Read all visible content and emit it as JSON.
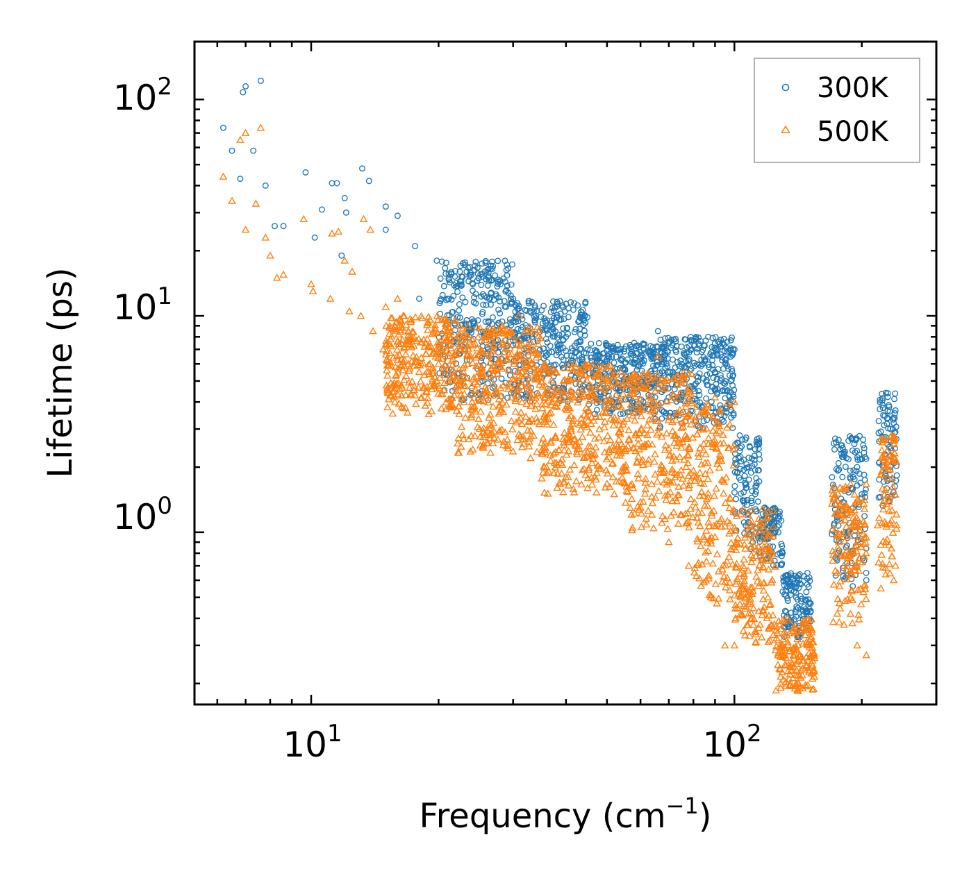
{
  "chart_data": {
    "type": "scatter",
    "xscale": "log",
    "yscale": "log",
    "xlabel_main": "Frequency (cm",
    "xlabel_sup": "−1",
    "xlabel_end": ")",
    "ylabel": "Lifetime (ps)",
    "xlim": [
      5.3,
      300
    ],
    "ylim": [
      0.16,
      185
    ],
    "xticks": [
      {
        "value": 10,
        "base": "10",
        "exp": "1"
      },
      {
        "value": 100,
        "base": "10",
        "exp": "2"
      }
    ],
    "yticks": [
      {
        "value": 1,
        "base": "10",
        "exp": "0"
      },
      {
        "value": 10,
        "base": "10",
        "exp": "1"
      },
      {
        "value": 100,
        "base": "10",
        "exp": "2"
      }
    ],
    "legend_position": "top-right",
    "series": [
      {
        "name": "300K",
        "marker": "circle-open",
        "color": "#1f77b4",
        "anchors": [
          [
            6.2,
            74
          ],
          [
            6.9,
            108
          ],
          [
            7.0,
            115
          ],
          [
            7.6,
            122
          ],
          [
            6.5,
            58
          ],
          [
            7.3,
            58
          ],
          [
            6.8,
            43
          ],
          [
            7.8,
            40
          ],
          [
            9.7,
            46
          ],
          [
            11.2,
            41
          ],
          [
            11.5,
            41
          ],
          [
            13.2,
            48
          ],
          [
            13.7,
            42
          ],
          [
            12.0,
            35
          ],
          [
            16.0,
            29
          ],
          [
            10.6,
            31
          ],
          [
            12.1,
            30
          ],
          [
            8.2,
            26
          ],
          [
            8.6,
            26
          ],
          [
            10.2,
            23
          ],
          [
            11.8,
            19
          ],
          [
            15.0,
            32
          ],
          [
            15.0,
            25
          ],
          [
            17.6,
            21
          ],
          [
            19.8,
            18
          ],
          [
            23.3,
            16
          ],
          [
            26.8,
            16.5
          ],
          [
            28.0,
            14
          ],
          [
            24.1,
            14
          ],
          [
            18.0,
            12
          ],
          [
            21.0,
            12
          ],
          [
            30.0,
            12
          ],
          [
            34.0,
            10
          ],
          [
            37.0,
            9.5
          ],
          [
            40.0,
            8
          ],
          [
            45.0,
            7
          ],
          [
            48.0,
            6.5
          ],
          [
            52.0,
            5.5
          ],
          [
            58.0,
            7.5
          ],
          [
            60.0,
            6
          ],
          [
            66.0,
            8.5
          ],
          [
            70.0,
            7.5
          ],
          [
            75.0,
            6
          ],
          [
            85.0,
            6.2
          ],
          [
            90.0,
            5.5
          ],
          [
            100.0,
            7
          ],
          [
            98.0,
            5
          ],
          [
            95.0,
            4.5
          ],
          [
            103.0,
            2.8
          ],
          [
            108.0,
            2
          ],
          [
            112.0,
            1.5
          ],
          [
            118.0,
            1.3
          ],
          [
            122.0,
            1.1
          ],
          [
            128.0,
            0.8
          ],
          [
            132.0,
            0.6
          ],
          [
            140.0,
            0.5
          ],
          [
            148.0,
            0.42
          ],
          [
            180.0,
            1.8
          ],
          [
            190.0,
            2.7
          ],
          [
            195.0,
            2.0
          ],
          [
            200.0,
            1.5
          ],
          [
            228.0,
            4.4
          ],
          [
            232.0,
            3.8
          ],
          [
            238.0,
            3.2
          ],
          [
            185.0,
            1.0
          ],
          [
            205.0,
            0.6
          ]
        ],
        "bands": [
          [
            20,
            30,
            4.0,
            18
          ],
          [
            30,
            45,
            4.0,
            12
          ],
          [
            45,
            65,
            3.5,
            7.5
          ],
          [
            65,
            100,
            3.0,
            8
          ],
          [
            100,
            115,
            0.8,
            2.8
          ],
          [
            115,
            130,
            0.7,
            1.3
          ],
          [
            130,
            152,
            0.32,
            0.65
          ],
          [
            170,
            205,
            0.55,
            2.8
          ],
          [
            218,
            242,
            1.3,
            4.4
          ]
        ]
      },
      {
        "name": "500K",
        "marker": "triangle-open",
        "color": "#ff7f0e",
        "anchors": [
          [
            6.2,
            44
          ],
          [
            6.8,
            65
          ],
          [
            7.0,
            70
          ],
          [
            7.6,
            74
          ],
          [
            6.5,
            34
          ],
          [
            7.4,
            33
          ],
          [
            7.0,
            25
          ],
          [
            7.8,
            23
          ],
          [
            8.0,
            19
          ],
          [
            8.3,
            15
          ],
          [
            8.6,
            15.5
          ],
          [
            9.6,
            28
          ],
          [
            11.2,
            24
          ],
          [
            11.6,
            24.5
          ],
          [
            13.3,
            28
          ],
          [
            13.8,
            25
          ],
          [
            10.0,
            14
          ],
          [
            10.1,
            13
          ],
          [
            12.0,
            18
          ],
          [
            12.5,
            16
          ],
          [
            11.1,
            12
          ],
          [
            12.3,
            10.5
          ],
          [
            13.1,
            10
          ],
          [
            14.0,
            8.5
          ],
          [
            15.0,
            11
          ],
          [
            16.5,
            10
          ],
          [
            16.0,
            12
          ],
          [
            14.8,
            7
          ],
          [
            17.0,
            6
          ],
          [
            18.0,
            5.5
          ],
          [
            20.0,
            6
          ],
          [
            22.0,
            4.5
          ],
          [
            24.0,
            4
          ],
          [
            25.0,
            3
          ],
          [
            27.0,
            3.2
          ],
          [
            29.0,
            2.5
          ],
          [
            33.0,
            2.2
          ],
          [
            36.0,
            2.0
          ],
          [
            40.0,
            1.8
          ],
          [
            45.0,
            1.6
          ],
          [
            52.0,
            1.5
          ],
          [
            60.0,
            1.3
          ],
          [
            70.0,
            0.9
          ],
          [
            78.0,
            0.7
          ],
          [
            88.0,
            0.5
          ],
          [
            95.0,
            0.3
          ],
          [
            100.0,
            0.3
          ],
          [
            105.0,
            0.35
          ],
          [
            110.0,
            0.4
          ],
          [
            120.0,
            0.5
          ],
          [
            130.0,
            0.3
          ],
          [
            140.0,
            0.2
          ],
          [
            145.0,
            0.19
          ],
          [
            150.0,
            0.23
          ],
          [
            175.0,
            0.42
          ],
          [
            190.0,
            0.38
          ],
          [
            195.0,
            0.3
          ],
          [
            205.0,
            0.27
          ],
          [
            222.0,
            0.55
          ],
          [
            228.0,
            0.9
          ],
          [
            235.0,
            2.8
          ],
          [
            238.0,
            0.6
          ],
          [
            66.0,
            6.5
          ],
          [
            90.0,
            4.2
          ],
          [
            100.0,
            4.0
          ],
          [
            54.0,
            5.5
          ],
          [
            26.0,
            8
          ],
          [
            28.0,
            9
          ],
          [
            31.0,
            10
          ]
        ],
        "bands": [
          [
            15,
            22,
            3.5,
            10
          ],
          [
            22,
            35,
            2.3,
            9
          ],
          [
            35,
            55,
            1.5,
            6
          ],
          [
            55,
            80,
            1.0,
            5.5
          ],
          [
            80,
            100,
            0.45,
            4.0
          ],
          [
            100,
            125,
            0.3,
            1.3
          ],
          [
            125,
            155,
            0.18,
            0.4
          ],
          [
            170,
            205,
            0.35,
            1.7
          ],
          [
            218,
            242,
            0.6,
            2.8
          ]
        ]
      }
    ]
  }
}
